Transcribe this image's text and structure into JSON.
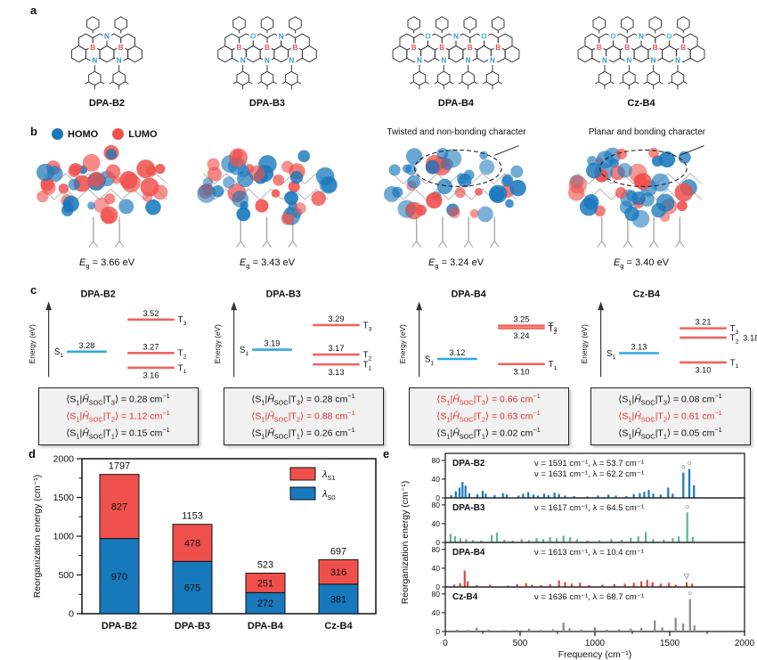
{
  "panel_labels": {
    "a": "a",
    "b": "b",
    "c": "c",
    "d": "d",
    "e": "e"
  },
  "panel_a": {
    "atom_colors": {
      "B": "#e8554f",
      "N": "#2f9ad0",
      "O": "#35b5e5"
    },
    "molecules": [
      {
        "name": "DPA-B2",
        "b_count": 2,
        "top_atoms": [
          "N"
        ],
        "bottom_n": 2
      },
      {
        "name": "DPA-B3",
        "b_count": 3,
        "top_atoms": [
          "O",
          "N"
        ],
        "bottom_n": 3
      },
      {
        "name": "DPA-B4",
        "b_count": 4,
        "top_atoms": [
          "O",
          "N",
          "O"
        ],
        "bottom_n": 4
      },
      {
        "name": "Cz-B4",
        "b_count": 4,
        "top_atoms": [
          "O",
          "N",
          "O"
        ],
        "bottom_n": 4
      }
    ]
  },
  "panel_b": {
    "legend": [
      {
        "label": "HOMO",
        "color": "#1878bc"
      },
      {
        "label": "LUMO",
        "color": "#f0504c"
      }
    ],
    "annotations": [
      {
        "text": "Twisted and non-bonding character",
        "column": 2
      },
      {
        "text": "Planar and bonding character",
        "column": 3
      }
    ],
    "eg_unit": "eV",
    "orbitals": [
      {
        "molecule": "DPA-B2",
        "eg": "3.66",
        "legs": 2,
        "ellipse": false
      },
      {
        "molecule": "DPA-B3",
        "eg": "3.43",
        "legs": 3,
        "ellipse": false
      },
      {
        "molecule": "DPA-B4",
        "eg": "3.24",
        "legs": 4,
        "ellipse": true
      },
      {
        "molecule": "Cz-B4",
        "eg": "3.40",
        "legs": 4,
        "ellipse": true
      }
    ]
  },
  "panel_c": {
    "axis_label": "Energy (eV)",
    "soc_unit": "cm⁻¹",
    "diagrams": [
      {
        "name": "DPA-B2",
        "s1": {
          "sub": "1",
          "value": "3.28"
        },
        "triplets": [
          {
            "sub": "3",
            "value": "3.52",
            "pos": "above"
          },
          {
            "sub": "2",
            "value": "3.27",
            "pos": "above"
          },
          {
            "sub": "1",
            "value": "3.16",
            "pos": "below"
          }
        ],
        "soc": [
          {
            "t_sub": "3",
            "value": "0.28",
            "red": false
          },
          {
            "t_sub": "2",
            "value": "1.12",
            "red": true
          },
          {
            "t_sub": "1",
            "value": "0.15",
            "red": false
          }
        ]
      },
      {
        "name": "DPA-B3",
        "s1": {
          "sub": "1",
          "value": "3.19"
        },
        "triplets": [
          {
            "sub": "3",
            "value": "3.29",
            "pos": "above"
          },
          {
            "sub": "2",
            "value": "3.17",
            "pos": "above"
          },
          {
            "sub": "1",
            "value": "3.13",
            "pos": "below"
          }
        ],
        "soc": [
          {
            "t_sub": "3",
            "value": "0.28",
            "red": false
          },
          {
            "t_sub": "2",
            "value": "0.88",
            "red": true
          },
          {
            "t_sub": "1",
            "value": "0.26",
            "red": false
          }
        ]
      },
      {
        "name": "DPA-B4",
        "s1": {
          "sub": "1",
          "value": "3.12"
        },
        "triplets": [
          {
            "sub": "3",
            "value": "3.25",
            "pos": "above"
          },
          {
            "sub": "2",
            "value": "3.24",
            "pos": "below"
          },
          {
            "sub": "1",
            "value": "3.10",
            "pos": "below"
          }
        ],
        "soc": [
          {
            "t_sub": "3",
            "value": "0.66",
            "red": true
          },
          {
            "t_sub": "2",
            "value": "0.63",
            "red": true
          },
          {
            "t_sub": "1",
            "value": "0.02",
            "red": false
          }
        ]
      },
      {
        "name": "Cz-B4",
        "s1": {
          "sub": "1",
          "value": "3.13"
        },
        "triplets": [
          {
            "sub": "3",
            "value": "3.21",
            "pos": "above"
          },
          {
            "sub": "2",
            "value": "3.18",
            "pos": "right"
          },
          {
            "sub": "1",
            "value": "3.10",
            "pos": "below"
          }
        ],
        "soc": [
          {
            "t_sub": "3",
            "value": "0.08",
            "red": false
          },
          {
            "t_sub": "2",
            "value": "0.61",
            "red": true
          },
          {
            "t_sub": "1",
            "value": "0.05",
            "red": false
          }
        ]
      }
    ]
  },
  "chart_data": [
    {
      "id": "reorganization-bars",
      "type": "bar",
      "stacked": true,
      "categories": [
        "DPA-B2",
        "DPA-B3",
        "DPA-B4",
        "Cz-B4"
      ],
      "series": [
        {
          "name": "λS1",
          "label_main": "λ",
          "label_sub": "S1",
          "color": "#f0504c",
          "values": [
            827,
            478,
            251,
            316
          ]
        },
        {
          "name": "λS0",
          "label_main": "λ",
          "label_sub": "S0",
          "color": "#1878bc",
          "values": [
            970,
            675,
            272,
            381
          ]
        }
      ],
      "totals": [
        1797,
        1153,
        523,
        697
      ],
      "ylabel": "Reorganization energy (cm⁻¹)",
      "xlabel": "",
      "ylim": [
        0,
        2000
      ],
      "yticks": [
        0,
        500,
        1000,
        1500,
        2000
      ],
      "legend_position": "top-right",
      "grid": false
    },
    {
      "id": "mode-spectra",
      "type": "bar",
      "xlabel": "Frequency (cm⁻¹)",
      "ylabel": "Reorganization energy (cm⁻¹)",
      "xlim": [
        0,
        2000
      ],
      "xticks": [
        0,
        500,
        1000,
        1500,
        2000
      ],
      "ylim": [
        0,
        95
      ],
      "yticks": [
        0,
        40,
        80
      ],
      "grid": false,
      "subplots": [
        {
          "name": "DPA-B2",
          "color": "#1878bc",
          "marker": "○",
          "marked": [
            1591,
            1631
          ],
          "annotations": [
            "ν = 1591 cm⁻¹, λ = 53.7 cm⁻¹",
            "ν = 1631 cm⁻¹, λ = 62.2 cm⁻¹"
          ],
          "peaks": [
            [
              40,
              6
            ],
            [
              70,
              14
            ],
            [
              95,
              22
            ],
            [
              115,
              34
            ],
            [
              135,
              26
            ],
            [
              160,
              10
            ],
            [
              215,
              8
            ],
            [
              250,
              15
            ],
            [
              270,
              9
            ],
            [
              330,
              6
            ],
            [
              385,
              10
            ],
            [
              410,
              7
            ],
            [
              490,
              5
            ],
            [
              520,
              9
            ],
            [
              555,
              12
            ],
            [
              590,
              7
            ],
            [
              620,
              5
            ],
            [
              660,
              9
            ],
            [
              690,
              6
            ],
            [
              730,
              11
            ],
            [
              760,
              8
            ],
            [
              800,
              5
            ],
            [
              860,
              4
            ],
            [
              950,
              3
            ],
            [
              1020,
              5
            ],
            [
              1090,
              7
            ],
            [
              1140,
              5
            ],
            [
              1210,
              4
            ],
            [
              1260,
              8
            ],
            [
              1300,
              10
            ],
            [
              1330,
              13
            ],
            [
              1360,
              17
            ],
            [
              1390,
              9
            ],
            [
              1440,
              7
            ],
            [
              1490,
              22
            ],
            [
              1520,
              9
            ],
            [
              1591,
              54
            ],
            [
              1631,
              62
            ],
            [
              1662,
              27
            ]
          ]
        },
        {
          "name": "DPA-B3",
          "color": "#5cb98a",
          "marker": "○",
          "marked": [
            1617
          ],
          "annotations": [
            "ν = 1617 cm⁻¹, λ = 64.5 cm⁻¹"
          ],
          "peaks": [
            [
              35,
              18
            ],
            [
              65,
              13
            ],
            [
              100,
              9
            ],
            [
              140,
              7
            ],
            [
              185,
              5
            ],
            [
              240,
              4
            ],
            [
              310,
              16
            ],
            [
              345,
              21
            ],
            [
              395,
              6
            ],
            [
              450,
              4
            ],
            [
              510,
              7
            ],
            [
              560,
              5
            ],
            [
              610,
              9
            ],
            [
              655,
              7
            ],
            [
              700,
              11
            ],
            [
              745,
              9
            ],
            [
              790,
              14
            ],
            [
              835,
              11
            ],
            [
              880,
              7
            ],
            [
              950,
              4
            ],
            [
              1030,
              5
            ],
            [
              1110,
              7
            ],
            [
              1180,
              6
            ],
            [
              1240,
              10
            ],
            [
              1290,
              13
            ],
            [
              1340,
              22
            ],
            [
              1390,
              7
            ],
            [
              1460,
              6
            ],
            [
              1520,
              9
            ],
            [
              1560,
              13
            ],
            [
              1617,
              64
            ],
            [
              1655,
              12
            ]
          ]
        },
        {
          "name": "DPA-B4",
          "color": "#e8453c",
          "marker": "▽",
          "marked": [
            1613
          ],
          "annotations": [
            "ν = 1613 cm⁻¹, λ = 10.4 cm⁻¹"
          ],
          "peaks": [
            [
              60,
              5
            ],
            [
              100,
              8
            ],
            [
              130,
              35
            ],
            [
              150,
              12
            ],
            [
              210,
              4
            ],
            [
              300,
              5
            ],
            [
              420,
              3
            ],
            [
              480,
              6
            ],
            [
              540,
              8
            ],
            [
              580,
              5
            ],
            [
              640,
              4
            ],
            [
              700,
              6
            ],
            [
              760,
              14
            ],
            [
              800,
              10
            ],
            [
              845,
              7
            ],
            [
              900,
              9
            ],
            [
              960,
              4
            ],
            [
              1050,
              5
            ],
            [
              1130,
              6
            ],
            [
              1200,
              7
            ],
            [
              1260,
              9
            ],
            [
              1310,
              12
            ],
            [
              1350,
              15
            ],
            [
              1385,
              10
            ],
            [
              1440,
              7
            ],
            [
              1495,
              9
            ],
            [
              1540,
              5
            ],
            [
              1613,
              10
            ],
            [
              1650,
              7
            ]
          ]
        },
        {
          "name": "Cz-B4",
          "color": "#8a8a8a",
          "marker": "○",
          "marked": [
            1636
          ],
          "annotations": [
            "ν = 1636 cm⁻¹, λ = 68.7 cm⁻¹"
          ],
          "peaks": [
            [
              80,
              4
            ],
            [
              150,
              3
            ],
            [
              210,
              8
            ],
            [
              290,
              4
            ],
            [
              390,
              3
            ],
            [
              480,
              4
            ],
            [
              560,
              6
            ],
            [
              640,
              3
            ],
            [
              720,
              5
            ],
            [
              790,
              19
            ],
            [
              830,
              7
            ],
            [
              910,
              4
            ],
            [
              1000,
              9
            ],
            [
              1080,
              4
            ],
            [
              1160,
              5
            ],
            [
              1240,
              6
            ],
            [
              1310,
              8
            ],
            [
              1400,
              24
            ],
            [
              1450,
              9
            ],
            [
              1540,
              29
            ],
            [
              1590,
              17
            ],
            [
              1636,
              69
            ],
            [
              1665,
              13
            ]
          ]
        }
      ]
    }
  ]
}
